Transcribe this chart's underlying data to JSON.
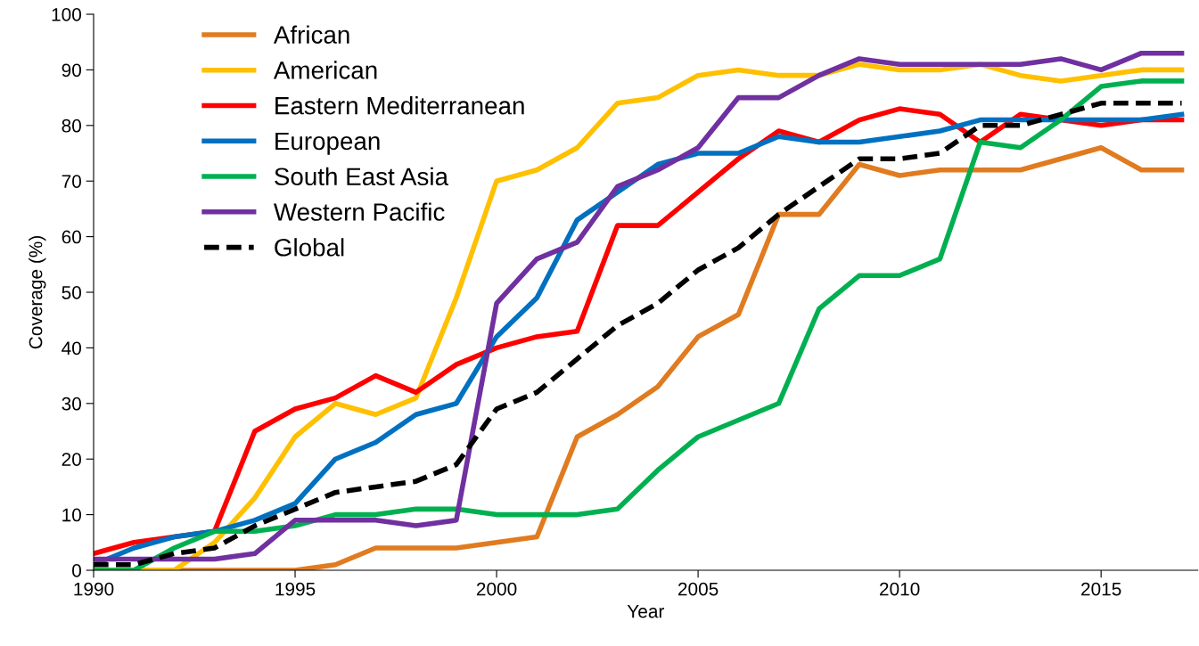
{
  "chart_data": {
    "type": "line",
    "xlabel": "Year",
    "ylabel": "Coverage (%)",
    "x": [
      1990,
      1991,
      1992,
      1993,
      1994,
      1995,
      1996,
      1997,
      1998,
      1999,
      2000,
      2001,
      2002,
      2003,
      2004,
      2005,
      2006,
      2007,
      2008,
      2009,
      2010,
      2011,
      2012,
      2013,
      2014,
      2015,
      2016,
      2017
    ],
    "series": [
      {
        "name": "African",
        "color": "#e07b20",
        "values": [
          0,
          0,
          0,
          0,
          0,
          0,
          1,
          4,
          4,
          4,
          5,
          6,
          24,
          28,
          33,
          42,
          46,
          64,
          64,
          73,
          71,
          72,
          72,
          72,
          74,
          76,
          72,
          72
        ]
      },
      {
        "name": "American",
        "color": "#ffc000",
        "values": [
          0,
          0,
          0,
          5,
          13,
          24,
          30,
          28,
          31,
          49,
          70,
          72,
          76,
          84,
          85,
          89,
          90,
          89,
          89,
          91,
          90,
          90,
          91,
          89,
          88,
          89,
          90,
          90
        ]
      },
      {
        "name": "Eastern Mediterranean",
        "color": "#ff0000",
        "values": [
          3,
          5,
          6,
          7,
          25,
          29,
          31,
          35,
          32,
          37,
          40,
          42,
          43,
          62,
          62,
          68,
          74,
          79,
          77,
          81,
          83,
          82,
          77,
          82,
          81,
          80,
          81,
          81
        ]
      },
      {
        "name": "European",
        "color": "#0070c0",
        "values": [
          1,
          4,
          6,
          7,
          9,
          12,
          20,
          23,
          28,
          30,
          42,
          49,
          63,
          68,
          73,
          75,
          75,
          78,
          77,
          77,
          78,
          79,
          81,
          81,
          81,
          81,
          81,
          82
        ]
      },
      {
        "name": "South East Asia",
        "color": "#00b050",
        "values": [
          0,
          0,
          4,
          7,
          7,
          8,
          10,
          10,
          11,
          11,
          10,
          10,
          10,
          11,
          18,
          24,
          27,
          30,
          47,
          53,
          53,
          56,
          77,
          76,
          81,
          87,
          88,
          88
        ]
      },
      {
        "name": "Western Pacific",
        "color": "#7030a0",
        "values": [
          2,
          2,
          2,
          2,
          3,
          9,
          9,
          9,
          8,
          9,
          48,
          56,
          59,
          69,
          72,
          76,
          85,
          85,
          89,
          92,
          91,
          91,
          91,
          91,
          92,
          90,
          93,
          93
        ]
      },
      {
        "name": "Global",
        "color": "#000000",
        "line_style": "dashed",
        "values": [
          1,
          1,
          3,
          4,
          8,
          11,
          14,
          15,
          16,
          19,
          29,
          32,
          38,
          44,
          48,
          54,
          58,
          64,
          69,
          74,
          74,
          75,
          80,
          80,
          82,
          84,
          84,
          84
        ]
      }
    ],
    "xlim": [
      1990,
      2017.4
    ],
    "xticks": [
      1990,
      1995,
      2000,
      2005,
      2010,
      2015
    ],
    "ylim": [
      0,
      100
    ],
    "yticks": [
      0,
      10,
      20,
      30,
      40,
      50,
      60,
      70,
      80,
      90,
      100
    ],
    "grid": false,
    "legend": "top left",
    "marker": "none",
    "line_style": "solid"
  }
}
